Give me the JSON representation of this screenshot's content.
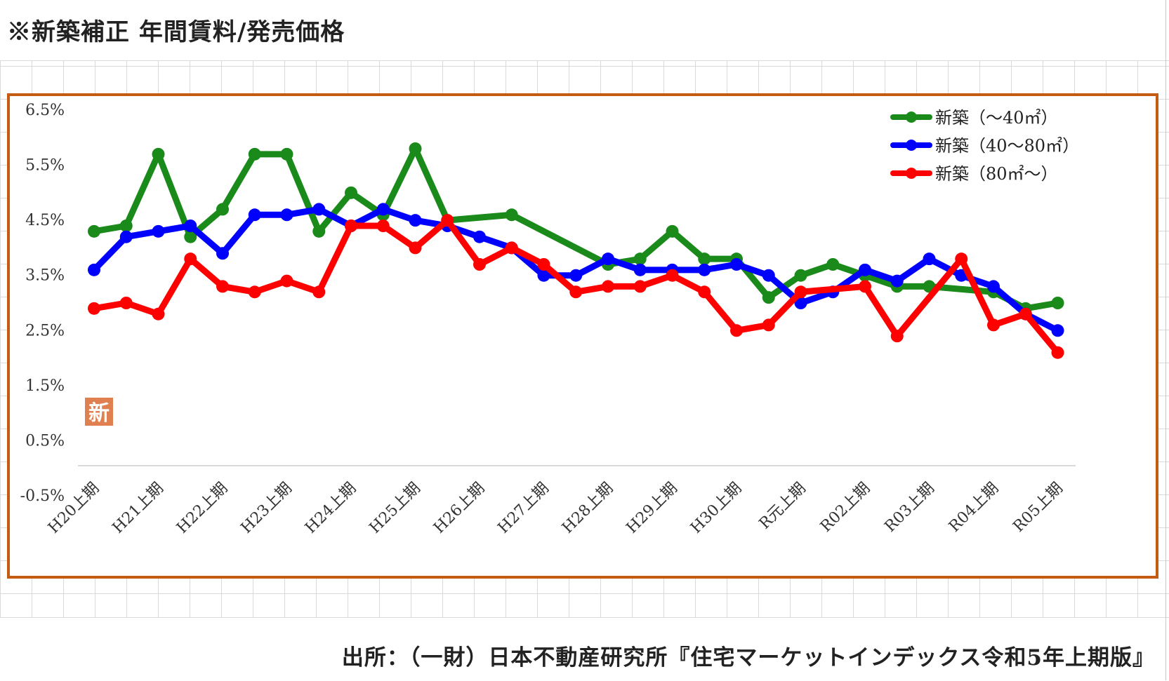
{
  "page": {
    "title": "※新築補正 年間賃料/発売価格",
    "source": "出所：（一財）日本不動産研究所『住宅マーケットインデックス令和5年上期版』",
    "badge": "新"
  },
  "colors": {
    "frame": "#c55a11",
    "badge_bg": "#e08050",
    "axis": "#d9d9d9"
  },
  "chart_data": {
    "type": "line",
    "title": "",
    "xlabel": "",
    "ylabel": "",
    "ylim": [
      -0.5,
      6.5
    ],
    "yticks": [
      -0.5,
      0.5,
      1.5,
      2.5,
      3.5,
      4.5,
      5.5,
      6.5
    ],
    "ytick_labels": [
      "-0.5%",
      "0.5%",
      "1.5%",
      "2.5%",
      "3.5%",
      "4.5%",
      "5.5%",
      "6.5%"
    ],
    "grid": false,
    "legend_position": "top-right",
    "x_labels": [
      "H20上期",
      "H21上期",
      "H22上期",
      "H23上期",
      "H24上期",
      "H25上期",
      "H26上期",
      "H27上期",
      "H28上期",
      "H29上期",
      "H30上期",
      "R元上期",
      "R02上期",
      "R03上期",
      "R04上期",
      "R05上期"
    ],
    "series": [
      {
        "name": "新築（～40㎡）",
        "color": "#1a8a1a",
        "points": [
          [
            0,
            4.3
          ],
          [
            0.5,
            4.4
          ],
          [
            1,
            5.7
          ],
          [
            1.5,
            4.2
          ],
          [
            2,
            4.7
          ],
          [
            2.5,
            5.7
          ],
          [
            3,
            5.7
          ],
          [
            3.5,
            4.3
          ],
          [
            4,
            5.0
          ],
          [
            4.5,
            4.6
          ],
          [
            5,
            5.8
          ],
          [
            5.5,
            4.5
          ],
          [
            6.5,
            4.6
          ],
          [
            8,
            3.7
          ],
          [
            8.5,
            3.8
          ],
          [
            9,
            4.3
          ],
          [
            9.5,
            3.8
          ],
          [
            10,
            3.8
          ],
          [
            10.5,
            3.1
          ],
          [
            11,
            3.5
          ],
          [
            11.5,
            3.7
          ],
          [
            12,
            3.5
          ],
          [
            12.5,
            3.3
          ],
          [
            13,
            3.3
          ],
          [
            14,
            3.2
          ],
          [
            14.5,
            2.9
          ],
          [
            15,
            3.0
          ]
        ]
      },
      {
        "name": "新築（40～80㎡）",
        "color": "#0000ff",
        "points": [
          [
            0,
            3.6
          ],
          [
            0.5,
            4.2
          ],
          [
            1,
            4.3
          ],
          [
            1.5,
            4.4
          ],
          [
            2,
            3.9
          ],
          [
            2.5,
            4.6
          ],
          [
            3,
            4.6
          ],
          [
            3.5,
            4.7
          ],
          [
            4,
            4.4
          ],
          [
            4.5,
            4.7
          ],
          [
            5,
            4.5
          ],
          [
            5.5,
            4.4
          ],
          [
            6,
            4.2
          ],
          [
            6.5,
            4.0
          ],
          [
            7,
            3.5
          ],
          [
            7.5,
            3.5
          ],
          [
            8,
            3.8
          ],
          [
            8.5,
            3.6
          ],
          [
            9,
            3.6
          ],
          [
            9.5,
            3.6
          ],
          [
            10,
            3.7
          ],
          [
            10.5,
            3.5
          ],
          [
            11,
            3.0
          ],
          [
            11.5,
            3.2
          ],
          [
            12,
            3.6
          ],
          [
            12.5,
            3.4
          ],
          [
            13,
            3.8
          ],
          [
            13.5,
            3.5
          ],
          [
            14,
            3.3
          ],
          [
            14.5,
            2.8
          ],
          [
            15,
            2.5
          ]
        ]
      },
      {
        "name": "新築（80㎡～）",
        "color": "#ff0000",
        "points": [
          [
            0,
            2.9
          ],
          [
            0.5,
            3.0
          ],
          [
            1,
            2.8
          ],
          [
            1.5,
            3.8
          ],
          [
            2,
            3.3
          ],
          [
            2.5,
            3.2
          ],
          [
            3,
            3.4
          ],
          [
            3.5,
            3.2
          ],
          [
            4,
            4.4
          ],
          [
            4.5,
            4.4
          ],
          [
            5,
            4.0
          ],
          [
            5.5,
            4.5
          ],
          [
            6,
            3.7
          ],
          [
            6.5,
            4.0
          ],
          [
            7,
            3.7
          ],
          [
            7.5,
            3.2
          ],
          [
            8,
            3.3
          ],
          [
            8.5,
            3.3
          ],
          [
            9,
            3.5
          ],
          [
            9.5,
            3.2
          ],
          [
            10,
            2.5
          ],
          [
            10.5,
            2.6
          ],
          [
            11,
            3.2
          ],
          [
            12,
            3.3
          ],
          [
            12.5,
            2.4
          ],
          [
            13.5,
            3.8
          ],
          [
            14,
            2.6
          ],
          [
            14.5,
            2.8
          ],
          [
            15,
            2.1
          ]
        ]
      }
    ]
  }
}
